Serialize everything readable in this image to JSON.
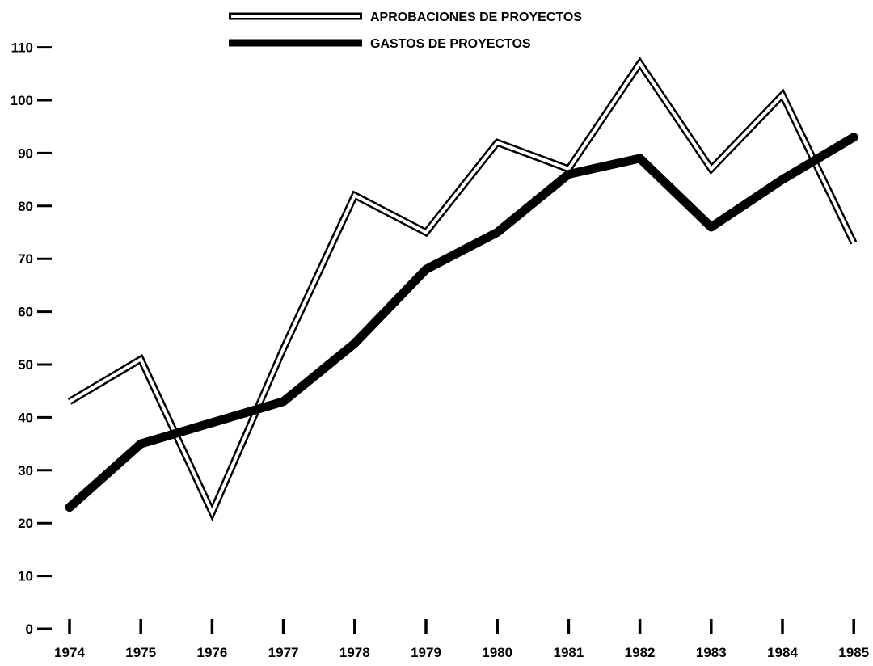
{
  "chart_data": {
    "type": "line",
    "x": [
      "1974",
      "1975",
      "1976",
      "1977",
      "1978",
      "1979",
      "1980",
      "1981",
      "1982",
      "1983",
      "1984",
      "1985"
    ],
    "series": [
      {
        "name": "APROBACIONES DE PROYECTOS",
        "style": "outline",
        "color": "#000000",
        "values": [
          43,
          51,
          22,
          53,
          82,
          75,
          92,
          87,
          107,
          87,
          101,
          73
        ]
      },
      {
        "name": "GASTOS DE PROYECTOS",
        "style": "solid",
        "color": "#000000",
        "values": [
          23,
          35,
          39,
          43,
          54,
          68,
          75,
          86,
          89,
          76,
          85,
          93
        ]
      }
    ],
    "y_ticks": [
      0,
      10,
      20,
      30,
      40,
      50,
      60,
      70,
      80,
      90,
      100,
      110
    ],
    "ylim": [
      0,
      110
    ],
    "grid": false,
    "legend_position": "top-center",
    "title": "",
    "xlabel": "",
    "ylabel": ""
  }
}
